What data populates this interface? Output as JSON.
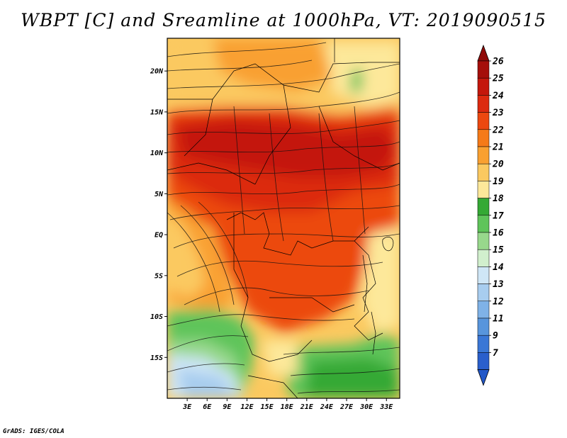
{
  "title": "WBPT [C] and Sreamline at 1000hPa, VT: 2019090515",
  "credit": "GrADS: IGES/COLA",
  "map": {
    "lon_range": [
      0,
      35
    ],
    "lat_range": [
      -20,
      24
    ],
    "lon_ticks": [
      "3E",
      "6E",
      "9E",
      "12E",
      "15E",
      "18E",
      "21E",
      "24E",
      "27E",
      "30E",
      "33E"
    ],
    "lon_tick_values": [
      3,
      6,
      9,
      12,
      15,
      18,
      21,
      24,
      27,
      30,
      33
    ],
    "lat_ticks": [
      "20N",
      "15N",
      "10N",
      "5N",
      "EQ",
      "5S",
      "10S",
      "15S"
    ],
    "lat_tick_values": [
      20,
      15,
      10,
      5,
      0,
      -5,
      -10,
      -15
    ]
  },
  "colorbar": {
    "levels": [
      "26",
      "25",
      "24",
      "23",
      "22",
      "21",
      "20",
      "19",
      "18",
      "17",
      "16",
      "15",
      "14",
      "13",
      "12",
      "11",
      "9",
      "7"
    ],
    "colors": [
      "#a50f0a",
      "#c4170c",
      "#dc2a10",
      "#ec4810",
      "#f57a18",
      "#f9a030",
      "#fbc960",
      "#fde89a",
      "#34a934",
      "#5fc45a",
      "#98d88c",
      "#d1efcd",
      "#cfe6f6",
      "#a8cdef",
      "#7fb2e7",
      "#5895dc",
      "#3a77d6",
      "#2a5fcc"
    ],
    "top_arrow_color": "#8f0a08",
    "bottom_arrow_color": "#2258c8"
  }
}
